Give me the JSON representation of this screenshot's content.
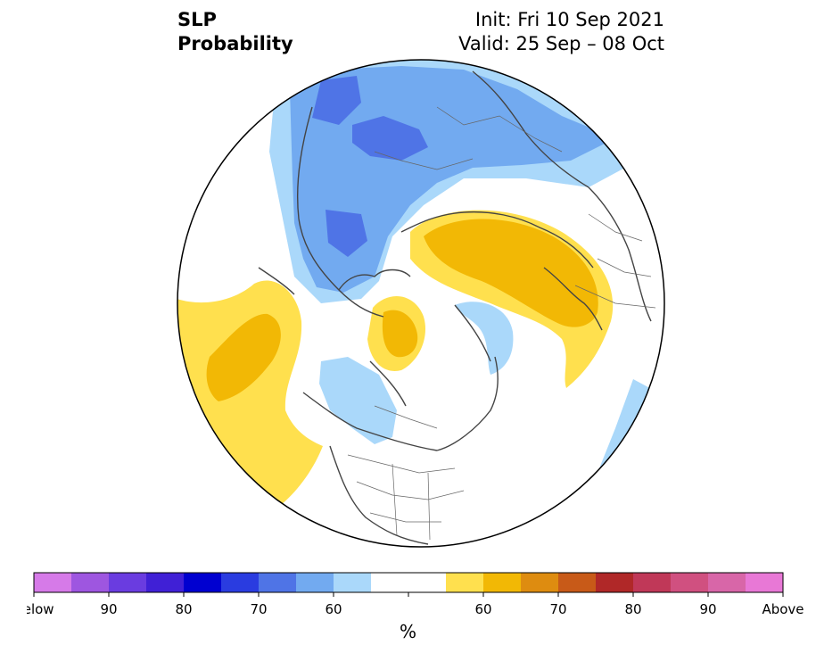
{
  "title": {
    "variable": "SLP",
    "field": "Probability",
    "init": "Init: Fri 10 Sep 2021",
    "valid": "Valid: 25 Sep – 08 Oct"
  },
  "legend": {
    "unit_label": "%",
    "tick_labels": [
      "Below",
      "90",
      "80",
      "70",
      "60",
      "60",
      "70",
      "80",
      "90",
      "Above"
    ],
    "color_bins": [
      "#d67ae8",
      "#9e56e0",
      "#6a3ce0",
      "#4020d6",
      "#0000d0",
      "#2a3ce0",
      "#4f74e6",
      "#72aaf0",
      "#aad8fa",
      "#ffffff",
      "#ffffff",
      "#ffe04e",
      "#f2b805",
      "#de8c10",
      "#c85a18",
      "#b02828",
      "#c03858",
      "#d05080",
      "#d866a8",
      "#e878d6"
    ]
  },
  "map": {
    "projection": "north-polar-stereographic",
    "background_color": "#ffffff",
    "coastline_color": "#444444"
  }
}
